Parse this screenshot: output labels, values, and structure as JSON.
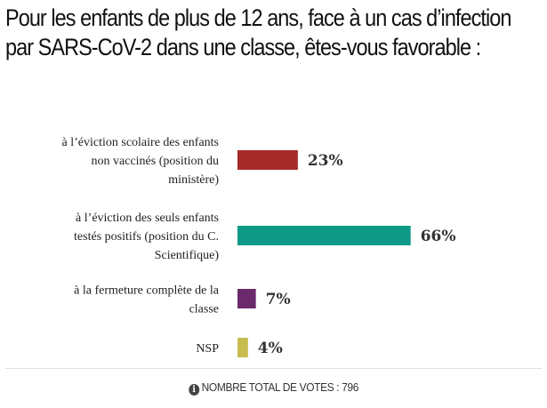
{
  "poll": {
    "title": "Pour les enfants de plus de 12 ans, face à un cas d’infection par SARS-CoV-2 dans une classe, êtes-vous favorable :",
    "footer_text": "NOMBRE TOTAL DE VOTES : 796",
    "footer_icon": "info-icon"
  },
  "chart_data": {
    "type": "bar",
    "orientation": "horizontal",
    "title": "Pour les enfants de plus de 12 ans, face à un cas d’infection par SARS-CoV-2 dans une classe, êtes-vous favorable :",
    "categories": [
      "à l’éviction scolaire des enfants non vaccinés (position du ministère)",
      "à l’éviction des seuls enfants testés positifs (position du C. Scientifique)",
      "à la fermeture complète de la classe",
      "NSP"
    ],
    "category_lines": [
      [
        "à l’éviction scolaire des enfants",
        "non vaccinés (position du",
        "ministère)"
      ],
      [
        "à l’éviction des seuls enfants",
        "testés positifs (position du C.",
        "Scientifique)"
      ],
      [
        "à la fermeture complète de la",
        "classe"
      ],
      [
        "NSP"
      ]
    ],
    "values": [
      23,
      66,
      7,
      4
    ],
    "value_labels": [
      "23%",
      "66%",
      "7%",
      "4%"
    ],
    "colors": [
      "#a52a2a",
      "#0e9a86",
      "#6b2a6b",
      "#c6bd4e"
    ],
    "unit": "%",
    "xlim": [
      0,
      100
    ],
    "total_votes": 796,
    "grid": false,
    "legend": "none"
  }
}
